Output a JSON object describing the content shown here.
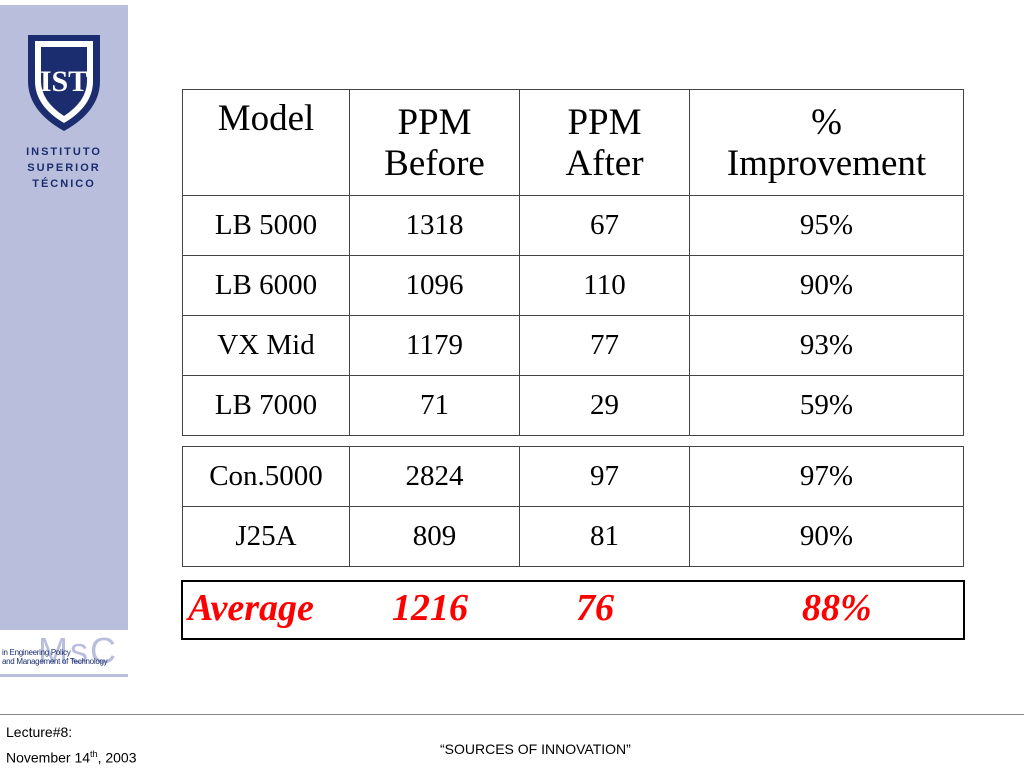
{
  "sidebar": {
    "institute_lines": [
      "INSTITUTO",
      "SUPERIOR",
      "TÉCNICO"
    ],
    "msc_logo": "MsC",
    "msc_lines": [
      "in Engineering Policy",
      "and Management of Technology"
    ],
    "shield_text": "IST"
  },
  "table": {
    "headers": [
      [
        "Model"
      ],
      [
        "PPM",
        "Before"
      ],
      [
        "PPM",
        "After"
      ],
      [
        "%",
        "Improvement"
      ]
    ],
    "rows_top": [
      [
        "LB 5000",
        "1318",
        "67",
        "95%"
      ],
      [
        "LB 6000",
        "1096",
        "110",
        "90%"
      ],
      [
        "VX Mid",
        "1179",
        "77",
        "93%"
      ],
      [
        "LB 7000",
        "71",
        "29",
        "59%"
      ]
    ],
    "rows_bottom": [
      [
        "Con.5000",
        "2824",
        "97",
        "97%"
      ],
      [
        "J25A",
        "809",
        "81",
        "90%"
      ]
    ]
  },
  "average": {
    "label": "Average",
    "before": "1216",
    "after": "76",
    "improvement": "88%"
  },
  "footer": {
    "lecture": "Lecture#8:",
    "date_prefix": "November 14",
    "date_sup": "th",
    "date_suffix": ", 2003",
    "title": "“SOURCES OF INNOVATION”"
  }
}
